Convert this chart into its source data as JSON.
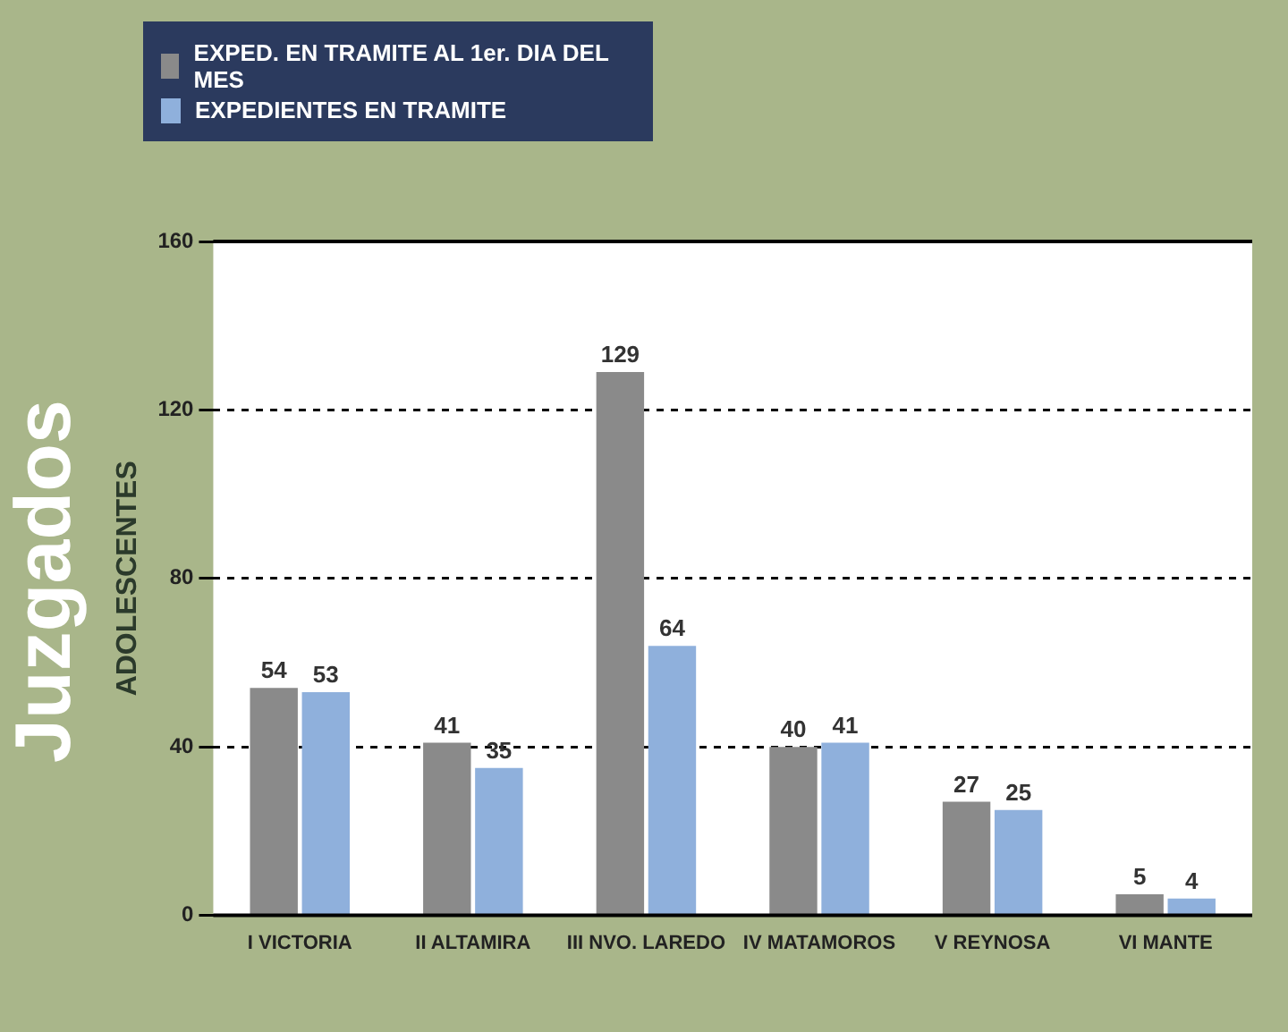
{
  "chart_data": {
    "type": "bar",
    "title": "Juzgados",
    "ylabel": "ADOLESCENTES",
    "categories": [
      "I VICTORIA",
      "II ALTAMIRA",
      "III NVO. LAREDO",
      "IV MATAMOROS",
      "V REYNOSA",
      "VI MANTE"
    ],
    "series": [
      {
        "name": "EXPED. EN TRAMITE AL 1er. DIA DEL MES",
        "color": "#8a8a8a",
        "values": [
          54,
          41,
          129,
          40,
          27,
          5
        ]
      },
      {
        "name": "EXPEDIENTES EN TRAMITE",
        "color": "#8fb0dc",
        "values": [
          53,
          35,
          64,
          41,
          25,
          4
        ]
      }
    ],
    "ylim": [
      0,
      160
    ],
    "yticks": [
      0,
      40,
      80,
      120,
      160
    ],
    "grid": "y",
    "legend": "top left",
    "data_labels": true
  }
}
